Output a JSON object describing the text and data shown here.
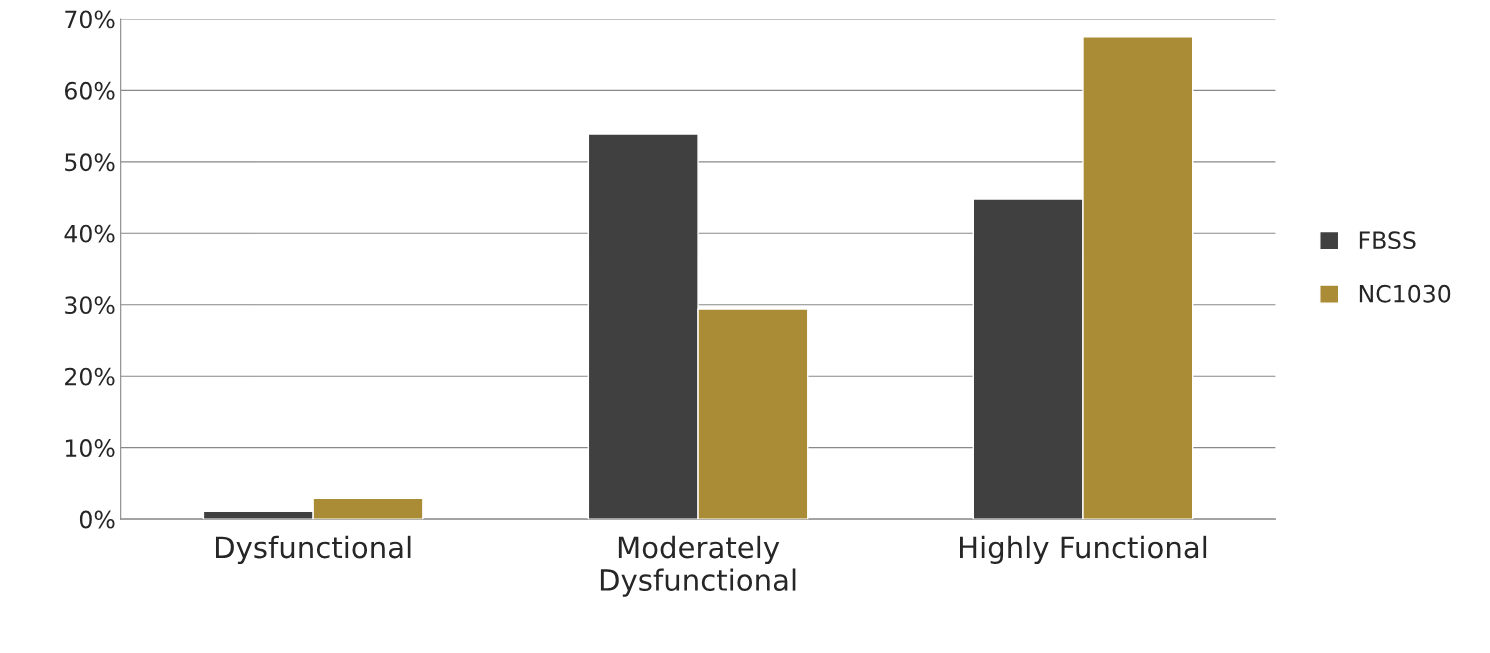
{
  "chart_data": {
    "type": "bar",
    "categories": [
      "Dysfunctional",
      "Moderately\nDysfunctional",
      "Highly Functional"
    ],
    "series": [
      {
        "name": "FBSS",
        "color": "#404040",
        "values": [
          1.1,
          53.9,
          44.8
        ]
      },
      {
        "name": "NC1030",
        "color": "#ab8c36",
        "values": [
          2.9,
          29.4,
          67.5
        ]
      }
    ],
    "ylim": [
      0,
      70
    ],
    "yticks": [
      {
        "value": 0,
        "label": "0%"
      },
      {
        "value": 10,
        "label": "10%"
      },
      {
        "value": 20,
        "label": "20%"
      },
      {
        "value": 30,
        "label": "30%"
      },
      {
        "value": 40,
        "label": "40%"
      },
      {
        "value": 50,
        "label": "50%"
      },
      {
        "value": 60,
        "label": "60%"
      },
      {
        "value": 70,
        "label": "70%"
      }
    ],
    "grid": "y",
    "legend": "right"
  }
}
